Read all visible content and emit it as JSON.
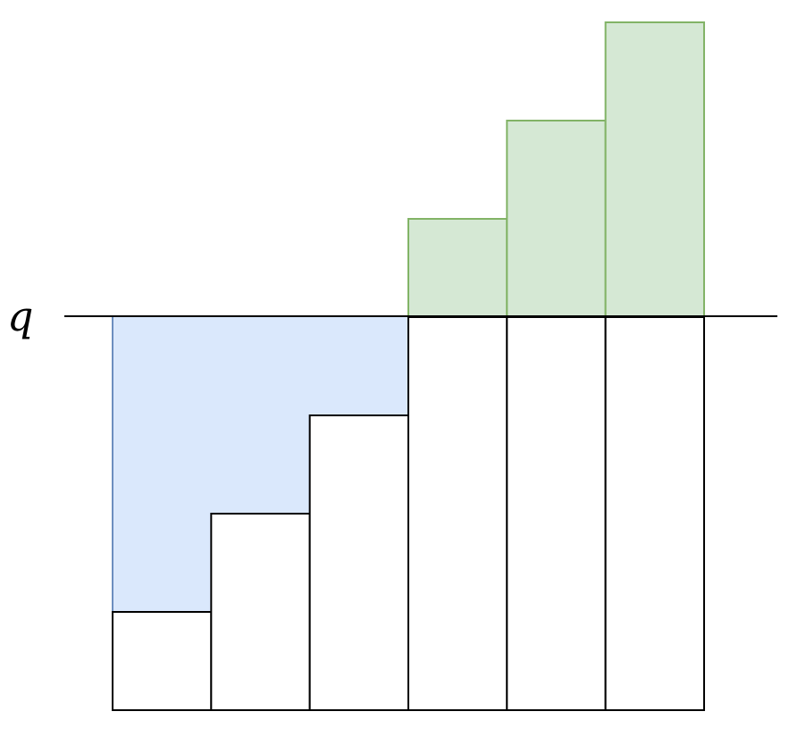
{
  "diagram": {
    "threshold_label": "q",
    "threshold_level": 4,
    "bar_levels": [
      1,
      2,
      3,
      4,
      4,
      4
    ],
    "excess_levels": [
      0,
      0,
      0,
      1,
      2,
      3
    ],
    "deficit_fill": "#dae8fc",
    "deficit_stroke": "#6c8ebf",
    "excess_fill": "#d5e8d4",
    "excess_stroke": "#82b366",
    "bar_stroke": "#000000"
  }
}
